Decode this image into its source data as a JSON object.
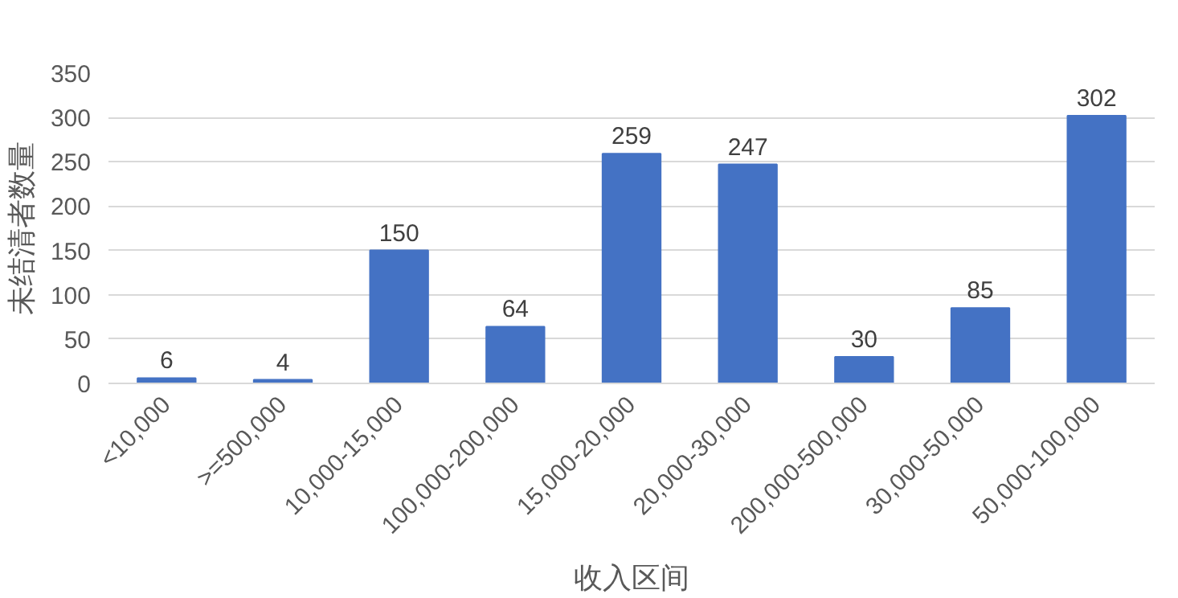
{
  "chart_data": {
    "type": "bar",
    "xlabel": "收入区间",
    "ylabel": "未结清者数量",
    "categories": [
      "<10,000",
      ">=500,000",
      "10,000-15,000",
      "100,000-200,000",
      "15,000-20,000",
      "20,000-30,000",
      "200,000-500,000",
      "30,000-50,000",
      "50,000-100,000"
    ],
    "values": [
      6,
      4,
      150,
      64,
      259,
      247,
      30,
      85,
      302
    ],
    "color": "#4472c4",
    "ylim": [
      0,
      350
    ],
    "yticks": [
      0,
      50,
      100,
      150,
      200,
      250,
      300,
      350
    ],
    "grid": "y",
    "data_labels": true
  }
}
